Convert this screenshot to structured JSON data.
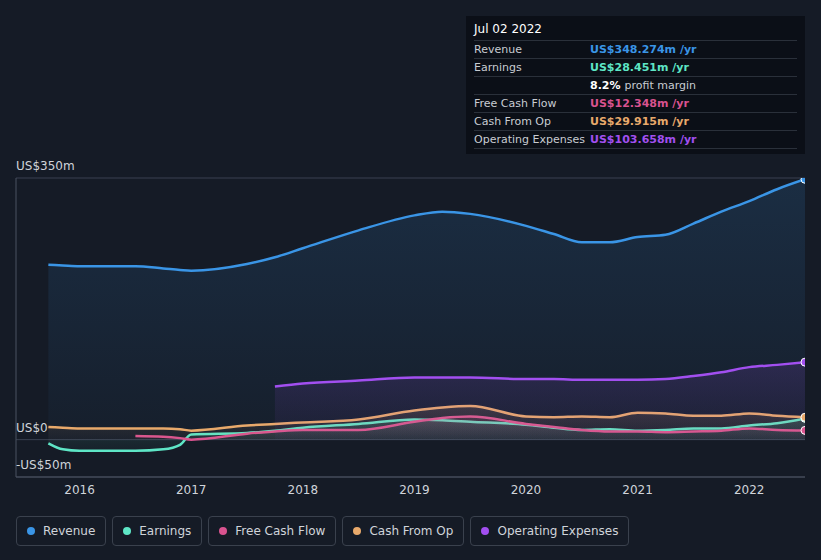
{
  "chart_data": {
    "type": "area",
    "x": [
      2015.72,
      2015.85,
      2016,
      2016.5,
      2016.75,
      2016.9,
      2017,
      2017.5,
      2017.75,
      2018,
      2018.5,
      2019,
      2019.25,
      2019.5,
      2020,
      2020.25,
      2020.5,
      2020.75,
      2021,
      2021.25,
      2021.5,
      2021.75,
      2022,
      2022.25,
      2022.5
    ],
    "xlim": [
      2015.43,
      2022.5
    ],
    "xticks": [
      2016,
      2017,
      2018,
      2019,
      2020,
      2021,
      2022
    ],
    "ylim": [
      -50,
      350
    ],
    "yticks": [
      {
        "value": -50,
        "label": "-US$50m"
      },
      {
        "value": 0,
        "label": "US$0"
      },
      {
        "value": 350,
        "label": "US$350m"
      }
    ],
    "grid": true,
    "series": [
      {
        "name": "Revenue",
        "color": "#3a95e6",
        "values": [
          234,
          233,
          232,
          232,
          229,
          227,
          226,
          235,
          244,
          256,
          280,
          300,
          305,
          302,
          286,
          275,
          264,
          264,
          271,
          274,
          289,
          305,
          319,
          335,
          348.274
        ]
      },
      {
        "name": "Earnings",
        "color": "#5ee6c6",
        "values": [
          -5,
          -13,
          -15,
          -15,
          -13,
          -7,
          7,
          9,
          12,
          16,
          21,
          27,
          26,
          24,
          20,
          16,
          13,
          14,
          12,
          13,
          15,
          15,
          19,
          22,
          28.451
        ]
      },
      {
        "name": "Free Cash Flow",
        "color": "#d9538f",
        "values": [
          null,
          null,
          null,
          5,
          4,
          2,
          0,
          8,
          11,
          13,
          13,
          24,
          29,
          31,
          21,
          17,
          13,
          11,
          11,
          10,
          11,
          12,
          15,
          13,
          12.348
        ]
      },
      {
        "name": "Cash From Op",
        "color": "#e8a96b",
        "values": [
          17,
          16,
          15,
          15,
          15,
          14,
          12,
          19,
          21,
          23,
          27,
          39,
          43,
          45,
          31,
          30,
          31,
          30,
          36,
          35,
          32,
          32,
          35,
          32,
          29.915
        ]
      },
      {
        "name": "Operating Expenses",
        "color": "#a24ff0",
        "values": [
          null,
          null,
          null,
          null,
          null,
          null,
          null,
          null,
          71,
          75,
          79,
          83,
          83,
          83,
          81,
          81,
          80,
          80,
          80,
          81,
          85,
          90,
          97,
          100,
          103.658
        ]
      }
    ],
    "summary": {
      "date": "Jul 02 2022",
      "rows": [
        {
          "label": "Revenue",
          "value": "US$348.274m /yr",
          "color": "#3a95e6"
        },
        {
          "label": "Earnings",
          "value": "US$28.451m /yr",
          "color": "#5ee6c6"
        },
        {
          "label": null,
          "value": "8.2%",
          "note": "profit margin",
          "color": "#ffffff"
        },
        {
          "label": "Free Cash Flow",
          "value": "US$12.348m /yr",
          "color": "#d9538f"
        },
        {
          "label": "Cash From Op",
          "value": "US$29.915m /yr",
          "color": "#e8a96b"
        },
        {
          "label": "Operating Expenses",
          "value": "US$103.658m /yr",
          "color": "#a24ff0"
        }
      ]
    }
  }
}
